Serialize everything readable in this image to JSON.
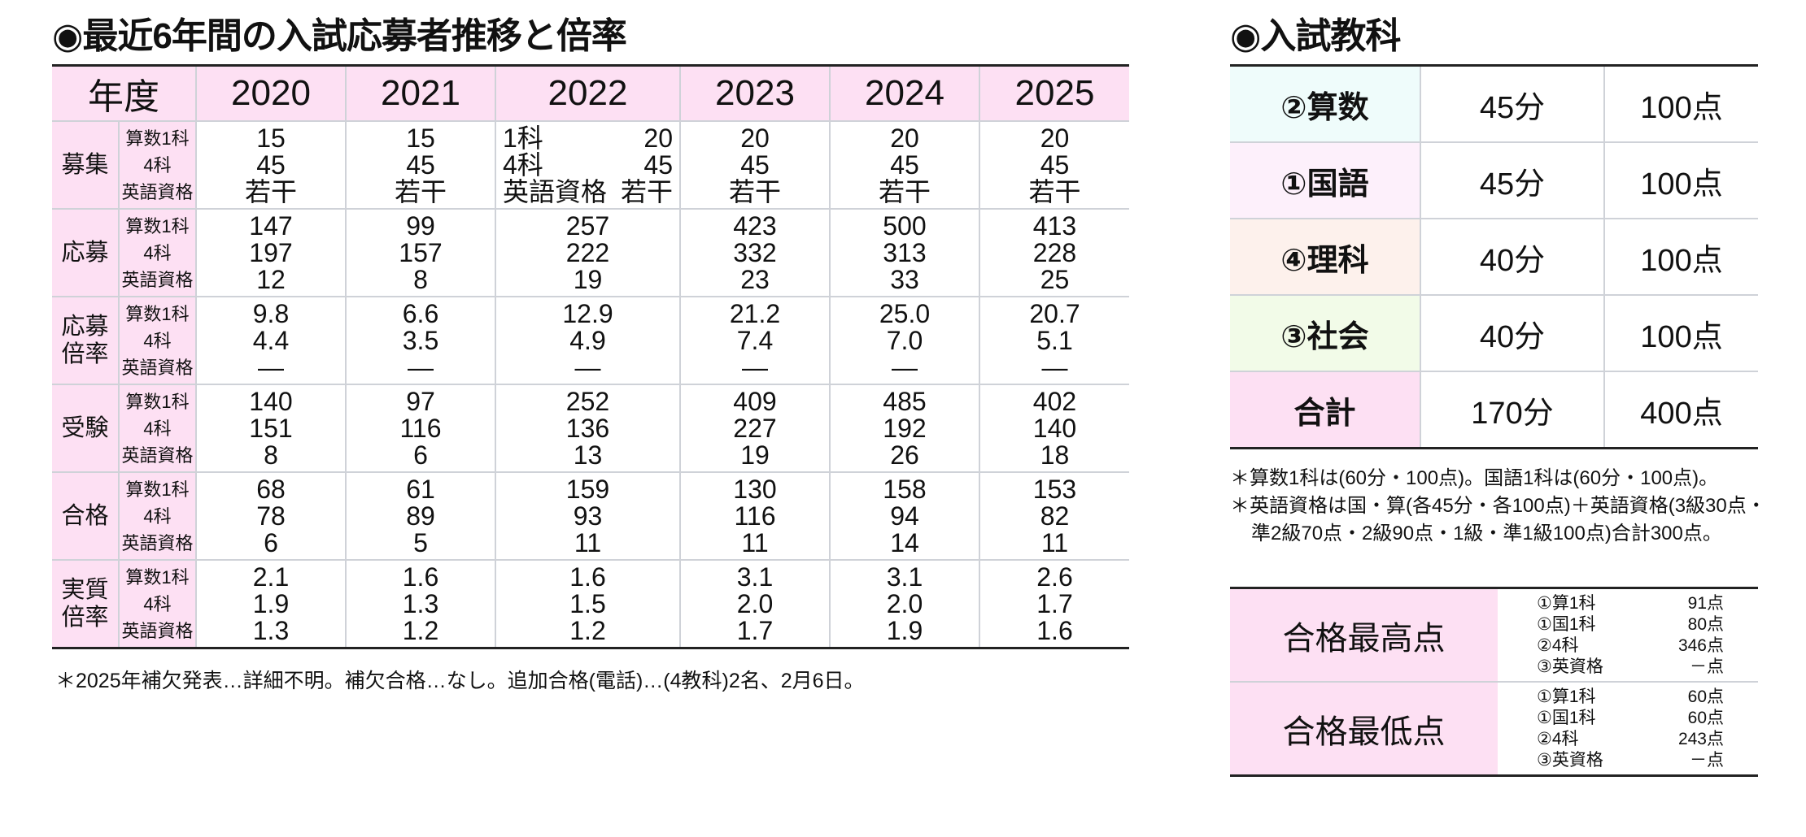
{
  "left_title": "◉最近6年間の入試応募者推移と倍率",
  "right_title": "◉入試教科",
  "main_table": {
    "corner": "年度",
    "years": [
      "2020",
      "2021",
      "2022",
      "2023",
      "2024",
      "2025"
    ],
    "rows": [
      {
        "label": "募集",
        "sublabels": [
          "算数1科",
          "4科",
          "英語資格"
        ],
        "values": [
          [
            "15",
            "45",
            "若干"
          ],
          [
            "15",
            "45",
            "若干"
          ],
          [
            "20",
            "45",
            "若干"
          ],
          [
            "20",
            "45",
            "若干"
          ],
          [
            "20",
            "45",
            "若干"
          ],
          [
            "20",
            "45",
            "若干"
          ]
        ],
        "inline_labels": {
          "2": [
            "1科",
            "4科",
            "英語資格"
          ]
        }
      },
      {
        "label": "応募",
        "sublabels": [
          "算数1科",
          "4科",
          "英語資格"
        ],
        "values": [
          [
            "147",
            "197",
            "12"
          ],
          [
            "99",
            "157",
            "8"
          ],
          [
            "257",
            "222",
            "19"
          ],
          [
            "423",
            "332",
            "23"
          ],
          [
            "500",
            "313",
            "33"
          ],
          [
            "413",
            "228",
            "25"
          ]
        ]
      },
      {
        "label": "応募倍率",
        "sublabels": [
          "算数1科",
          "4科",
          "英語資格"
        ],
        "values": [
          [
            "9.8",
            "4.4",
            "—"
          ],
          [
            "6.6",
            "3.5",
            "—"
          ],
          [
            "12.9",
            "4.9",
            "—"
          ],
          [
            "21.2",
            "7.4",
            "—"
          ],
          [
            "25.0",
            "7.0",
            "—"
          ],
          [
            "20.7",
            "5.1",
            "—"
          ]
        ]
      },
      {
        "label": "受験",
        "sublabels": [
          "算数1科",
          "4科",
          "英語資格"
        ],
        "values": [
          [
            "140",
            "151",
            "8"
          ],
          [
            "97",
            "116",
            "6"
          ],
          [
            "252",
            "136",
            "13"
          ],
          [
            "409",
            "227",
            "19"
          ],
          [
            "485",
            "192",
            "26"
          ],
          [
            "402",
            "140",
            "18"
          ]
        ]
      },
      {
        "label": "合格",
        "sublabels": [
          "算数1科",
          "4科",
          "英語資格"
        ],
        "values": [
          [
            "68",
            "78",
            "6"
          ],
          [
            "61",
            "89",
            "5"
          ],
          [
            "159",
            "93",
            "11"
          ],
          [
            "130",
            "116",
            "11"
          ],
          [
            "158",
            "94",
            "14"
          ],
          [
            "153",
            "82",
            "11"
          ]
        ]
      },
      {
        "label": "実質倍率",
        "sublabels": [
          "算数1科",
          "4科",
          "英語資格"
        ],
        "values": [
          [
            "2.1",
            "1.9",
            "1.3"
          ],
          [
            "1.6",
            "1.3",
            "1.2"
          ],
          [
            "1.6",
            "1.5",
            "1.2"
          ],
          [
            "3.1",
            "2.0",
            "1.7"
          ],
          [
            "3.1",
            "2.0",
            "1.9"
          ],
          [
            "2.6",
            "1.7",
            "1.6"
          ]
        ]
      }
    ],
    "note": "＊2025年補欠発表…詳細不明。補欠合格…なし。追加合格(電話)…(4教科)2名、2月6日。"
  },
  "subjects": [
    {
      "name": "②算数",
      "time": "45分",
      "points": "100点",
      "color": "#effcfb"
    },
    {
      "name": "①国語",
      "time": "45分",
      "points": "100点",
      "color": "#fdf0fb"
    },
    {
      "name": "④理科",
      "time": "40分",
      "points": "100点",
      "color": "#fdf1ec"
    },
    {
      "name": "③社会",
      "time": "40分",
      "points": "100点",
      "color": "#f2fbe8"
    },
    {
      "name": "合計",
      "time": "170分",
      "points": "400点",
      "color": "#fde0f3"
    }
  ],
  "subject_notes": [
    "＊算数1科は(60分・100点)。国語1科は(60分・100点)。",
    "＊英語資格は国・算(各45分・各100点)＋英語資格(3級30点・準2級70点・2級90点・1級・準1級100点)合計300点。"
  ],
  "scores": [
    {
      "label": "合格最高点",
      "items": [
        [
          "①算1科",
          "91点"
        ],
        [
          "①国1科",
          "80点"
        ],
        [
          "②4科",
          "346点"
        ],
        [
          "③英資格",
          "－点"
        ]
      ]
    },
    {
      "label": "合格最低点",
      "items": [
        [
          "①算1科",
          "60点"
        ],
        [
          "①国1科",
          "60点"
        ],
        [
          "②4科",
          "243点"
        ],
        [
          "③英資格",
          "－点"
        ]
      ]
    }
  ],
  "colors": {
    "header_pink": "#fde0f3",
    "rule": "#222222",
    "grid": "#cfd2d8"
  }
}
